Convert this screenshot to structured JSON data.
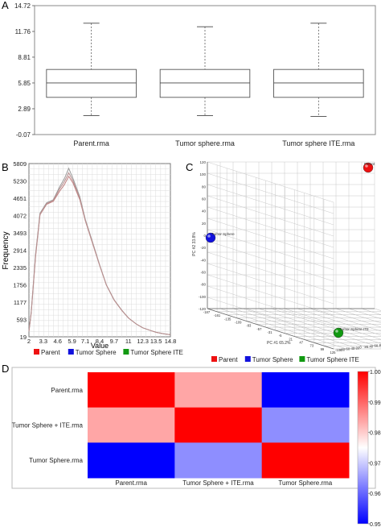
{
  "chart_data": [
    {
      "panel": "A",
      "type": "box",
      "categories": [
        "Parent.rma",
        "Tumor sphere.rma",
        "Tumor sphere ITE.rma"
      ],
      "y_ticks": [
        "-0.07",
        "2.89",
        "5.85",
        "8.81",
        "11.76",
        "14.72"
      ],
      "ylim": [
        -0.07,
        14.72
      ],
      "boxes": [
        {
          "whisker_low": 2.1,
          "q1": 4.2,
          "median": 5.85,
          "q3": 7.4,
          "whisker_high": 12.7
        },
        {
          "whisker_low": 2.1,
          "q1": 4.2,
          "median": 5.85,
          "q3": 7.4,
          "whisker_high": 12.3
        },
        {
          "whisker_low": 2.0,
          "q1": 4.2,
          "median": 5.85,
          "q3": 7.4,
          "whisker_high": 12.7
        }
      ],
      "grid": false
    },
    {
      "panel": "B",
      "type": "line",
      "xlabel": "Value",
      "ylabel": "Frequency",
      "x_ticks": [
        "2",
        "3.3",
        "4.6",
        "5.9",
        "7.1",
        "8.4",
        "9.7",
        "11",
        "12.3",
        "13.5",
        "14.8"
      ],
      "y_ticks": [
        "19",
        "593",
        "1177",
        "1756",
        "2335",
        "2914",
        "3493",
        "4072",
        "4651",
        "5230",
        "5809"
      ],
      "xlim": [
        2,
        14.8
      ],
      "ylim": [
        19,
        5809
      ],
      "series": [
        {
          "name": "Parent",
          "color": "#c08080",
          "x": [
            2,
            2.2,
            2.6,
            3.0,
            3.6,
            4.2,
            4.8,
            5.2,
            5.6,
            6.0,
            6.6,
            7.1,
            7.7,
            8.4,
            9.0,
            9.7,
            10.4,
            11,
            11.7,
            12.3,
            13.0,
            13.5,
            14.2,
            14.8
          ],
          "y": [
            200,
            800,
            2700,
            4100,
            4450,
            4550,
            4900,
            5100,
            5380,
            5150,
            4600,
            3900,
            3200,
            2400,
            1750,
            1250,
            900,
            650,
            450,
            320,
            230,
            170,
            120,
            90
          ]
        },
        {
          "name": "Tumor Sphere",
          "color": "#9a9a9a",
          "x": [
            2,
            2.2,
            2.6,
            3.0,
            3.6,
            4.2,
            4.8,
            5.2,
            5.6,
            6.0,
            6.6,
            7.1,
            7.7,
            8.4,
            9.0,
            9.7,
            10.4,
            11,
            11.7,
            12.3,
            13.0,
            13.5,
            14.2,
            14.8
          ],
          "y": [
            200,
            850,
            2800,
            4150,
            4500,
            4600,
            5050,
            5300,
            5650,
            5300,
            4700,
            3950,
            3250,
            2420,
            1760,
            1260,
            910,
            650,
            450,
            320,
            230,
            170,
            120,
            90
          ]
        },
        {
          "name": "Tumor Sphere ITE",
          "color": "#b89090",
          "x": [
            2,
            2.2,
            2.6,
            3.0,
            3.6,
            4.2,
            4.8,
            5.2,
            5.6,
            6.0,
            6.6,
            7.1,
            7.7,
            8.4,
            9.0,
            9.7,
            10.4,
            11,
            11.7,
            12.3,
            13.0,
            13.5,
            14.2,
            14.8
          ],
          "y": [
            200,
            820,
            2750,
            4120,
            4470,
            4580,
            4980,
            5200,
            5500,
            5220,
            4650,
            3920,
            3220,
            2410,
            1755,
            1255,
            905,
            650,
            450,
            320,
            230,
            170,
            120,
            90
          ]
        }
      ],
      "legend": [
        {
          "label": "Parent",
          "color": "#ee1111"
        },
        {
          "label": "Tumor Sphere",
          "color": "#1111dd"
        },
        {
          "label": "Tumor Sphere ITE",
          "color": "#119911"
        }
      ],
      "legend_position": "bottom",
      "grid": true
    },
    {
      "panel": "C",
      "type": "scatter",
      "xlabel": "PC #1 65.2%",
      "ylabel": "PC #2 33.8%",
      "y_ticks": [
        "120",
        "100",
        "80",
        "60",
        "40",
        "20",
        "0",
        "-20",
        "-40",
        "-60",
        "-80",
        "-100",
        "-120"
      ],
      "x_ticks": [
        "-187",
        "-161",
        "-135",
        "-109",
        "-83",
        "-57",
        "-31",
        "-5",
        "21",
        "47",
        "73",
        "99",
        "125"
      ],
      "z_ticks": [
        "-100",
        "-80",
        "-60",
        "-40",
        "-20",
        "0",
        "20",
        "40",
        "60",
        "80",
        "100",
        "120",
        "130"
      ],
      "points": [
        {
          "label": "Parent",
          "color": "#ee1111"
        },
        {
          "label": "Tumor Sphere",
          "color": "#1111dd"
        },
        {
          "label": "Tumor Sphere ITE",
          "color": "#119911"
        }
      ],
      "legend": [
        {
          "label": "Parent",
          "color": "#ee1111"
        },
        {
          "label": "Tumor Sphere",
          "color": "#1111dd"
        },
        {
          "label": "Tumor Sphere ITE",
          "color": "#119911"
        }
      ],
      "legend_position": "bottom",
      "grid": true
    },
    {
      "panel": "D",
      "type": "heatmap",
      "rows": [
        "Parent.rma",
        "Tumor Sphere + ITE.rma",
        "Tumor Sphere.rma"
      ],
      "cols": [
        "Parent.rma",
        "Tumor Sphere + ITE.rma",
        "Tumor Sphere.rma"
      ],
      "values": [
        [
          1.0,
          0.986,
          0.957
        ],
        [
          0.986,
          1.0,
          0.969
        ],
        [
          0.957,
          0.969,
          1.0
        ]
      ],
      "colorbar_ticks": [
        "1.000",
        "0.991",
        "0.983",
        "0.974",
        "0.965",
        "0.957"
      ],
      "vmin": 0.957,
      "vmax": 1.0
    }
  ],
  "panel_labels": {
    "a": "A",
    "b": "B",
    "c": "C",
    "d": "D"
  },
  "c_point_labels": {
    "parent": "Parent",
    "sphere": "Tumor Sphere",
    "ite": "Tumor Sphere ITE"
  }
}
